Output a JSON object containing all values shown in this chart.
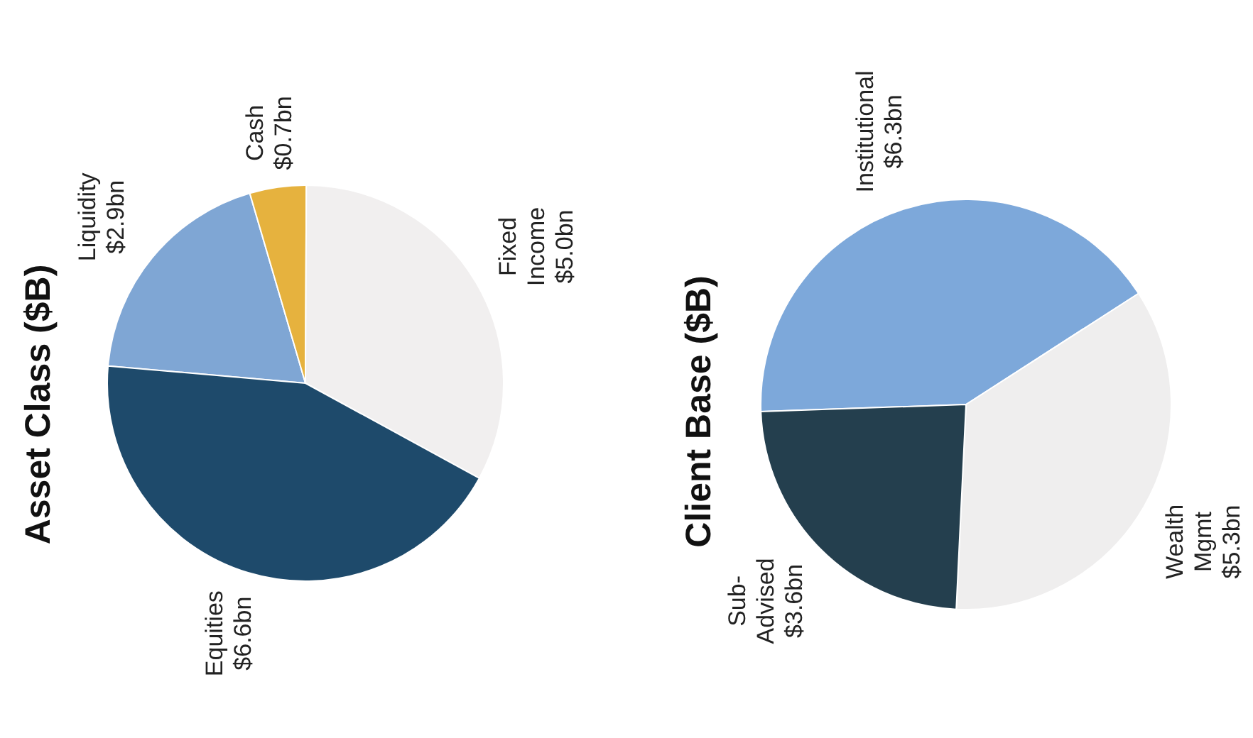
{
  "chart_data": [
    {
      "type": "pie",
      "title": "Asset Class ($B)",
      "categories": [
        "Liquidity",
        "Cash",
        "Fixed Income",
        "Equities"
      ],
      "values": [
        2.9,
        0.7,
        5.0,
        6.6
      ],
      "colors": [
        "#7fa6d4",
        "#e6b23e",
        "#f1efef",
        "#1e4a6b"
      ],
      "value_labels": [
        "$2.9bn",
        "$0.7bn",
        "$5.0bn",
        "$6.6bn"
      ],
      "legend": false
    },
    {
      "type": "pie",
      "title": "Client Base ($B)",
      "categories": [
        "Institutional",
        "Wealth Mgmt",
        "Sub-Advised"
      ],
      "values": [
        6.3,
        5.3,
        3.6
      ],
      "colors": [
        "#7da8da",
        "#efeeee",
        "#243f4e"
      ],
      "value_labels": [
        "$6.3bn",
        "$5.3bn",
        "$3.6bn"
      ],
      "legend": false
    }
  ]
}
